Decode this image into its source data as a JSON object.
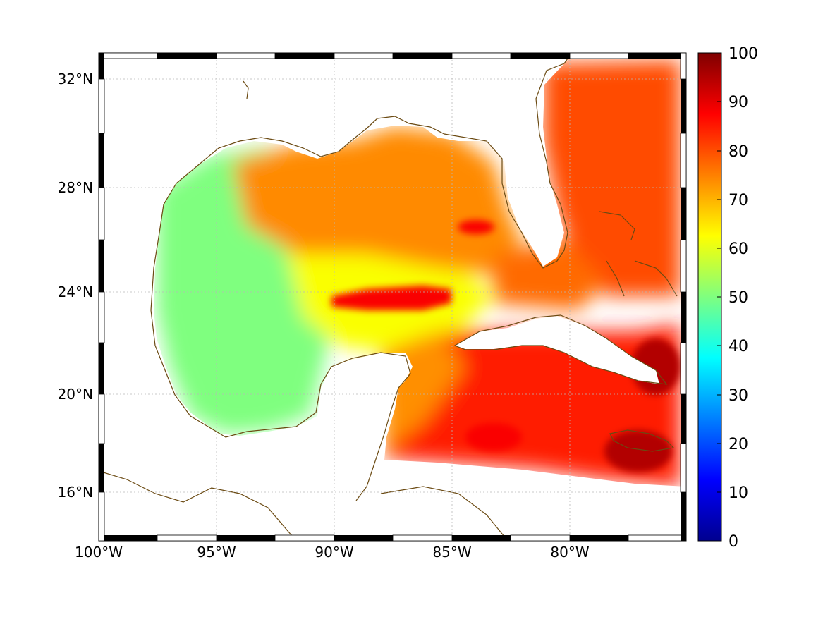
{
  "map": {
    "lat_labels": [
      "32°N",
      "28°N",
      "24°N",
      "20°N",
      "16°N"
    ],
    "lon_labels": [
      "100°W",
      "95°W",
      "90°W",
      "85°W",
      "80°W"
    ],
    "lon_range": [
      -100,
      -75.4
    ],
    "lat_range": [
      14.3,
      33
    ],
    "grid": true,
    "field_colormap": "jet",
    "coastline_color": "#6b4a12"
  },
  "colorbar": {
    "ticks": [
      "100",
      "90",
      "80",
      "70",
      "60",
      "50",
      "40",
      "30",
      "20",
      "10",
      "0"
    ],
    "min": 0,
    "max": 100
  },
  "regional_values": {
    "western_gulf": 50,
    "central_gulf": 62,
    "northern_gulf": 74,
    "loop_current_band": 88,
    "atlantic_east_of_florida": 80,
    "caribbean_south_of_cuba": 85,
    "jamaica_area": 95
  }
}
